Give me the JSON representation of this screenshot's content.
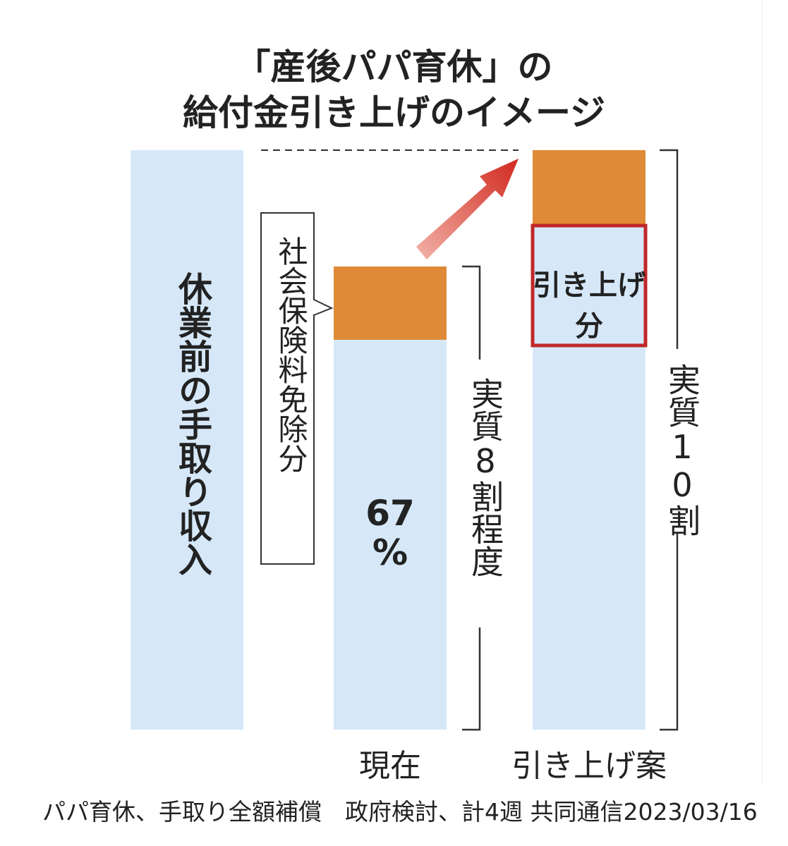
{
  "header": {
    "title_lines": [
      "「産後パパ育休」の",
      "給付金引き上げのイメージ"
    ]
  },
  "columns": [
    {
      "bar_label": "休業前の手取り収入"
    },
    {
      "label": "現在",
      "rate": {
        "number": "67",
        "unit": "%"
      },
      "bracket_label": "実質8割程度",
      "callout": "社会保険料免除分"
    },
    {
      "label": "引き上げ案",
      "raise_label": "引き上げ分",
      "bracket_label": "実質10割"
    }
  ],
  "caption": "パパ育休、手取り全額補償　政府検討、計4週 共同通信2023/03/16"
}
